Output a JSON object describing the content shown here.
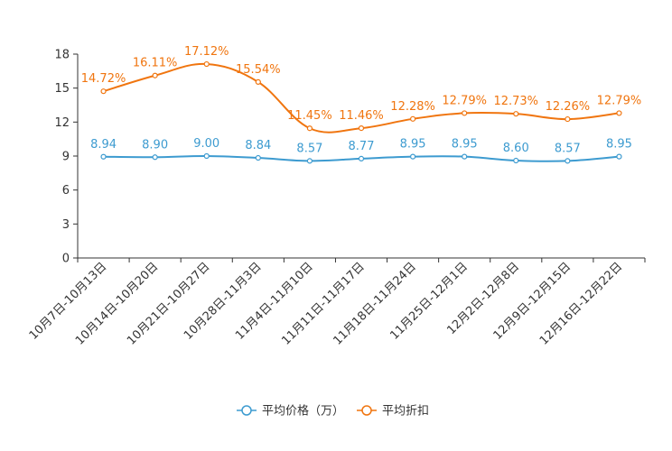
{
  "chart_data": {
    "type": "line",
    "categories": [
      "10月7日-10月13日",
      "10月14日-10月20日",
      "10月21日-10月27日",
      "10月28日-11月3日",
      "11月4日-11月10日",
      "11月11日-11月17日",
      "11月18日-11月24日",
      "11月25日-12月1日",
      "12月2日-12月8日",
      "12月9日-12月15日",
      "12月16日-12月22日"
    ],
    "series": [
      {
        "name": "平均价格（万）",
        "color": "#3d9bd0",
        "values": [
          8.94,
          8.9,
          9.0,
          8.84,
          8.57,
          8.77,
          8.95,
          8.95,
          8.6,
          8.57,
          8.95
        ],
        "labels": [
          "8.94",
          "8.90",
          "9.00",
          "8.84",
          "8.57",
          "8.77",
          "8.95",
          "8.95",
          "8.60",
          "8.57",
          "8.95"
        ]
      },
      {
        "name": "平均折扣",
        "color": "#f0750f",
        "values": [
          14.72,
          16.11,
          17.12,
          15.54,
          11.45,
          11.46,
          12.28,
          12.79,
          12.73,
          12.26,
          12.79
        ],
        "labels": [
          "14.72%",
          "16.11%",
          "17.12%",
          "15.54%",
          "11.45%",
          "11.46%",
          "12.28%",
          "12.79%",
          "12.73%",
          "12.26%",
          "12.79%"
        ]
      }
    ],
    "yticks": [
      "0",
      "3",
      "6",
      "9",
      "12",
      "15",
      "18"
    ],
    "ylim": [
      0,
      18
    ],
    "title": "",
    "xlabel": "",
    "ylabel": "",
    "legend_position": "bottom-center"
  }
}
